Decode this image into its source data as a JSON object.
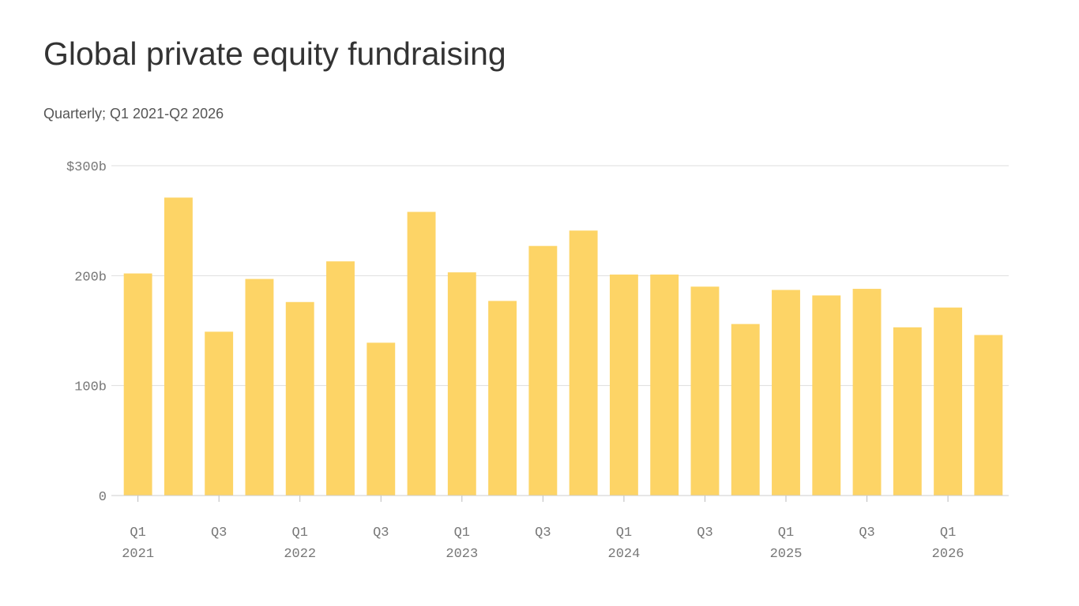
{
  "chart_data": {
    "type": "bar",
    "title": "Global private equity fundraising",
    "subtitle": "Quarterly; Q1 2021-Q2 2026",
    "categories": [
      "Q1",
      null,
      "Q3",
      null,
      "Q1",
      null,
      "Q3",
      null,
      "Q1",
      null,
      "Q3",
      null,
      "Q1",
      null,
      "Q3",
      null,
      "Q1",
      null,
      "Q3",
      null,
      "Q1",
      null
    ],
    "years": [
      "2021",
      null,
      null,
      null,
      "2022",
      null,
      null,
      null,
      "2023",
      null,
      null,
      null,
      "2024",
      null,
      null,
      null,
      "2025",
      null,
      null,
      null,
      "2026",
      null
    ],
    "values": [
      202,
      271,
      149,
      197,
      176,
      213,
      139,
      258,
      203,
      177,
      227,
      241,
      201,
      201,
      190,
      156,
      187,
      182,
      188,
      153,
      171,
      146
    ],
    "color": "#fdd466",
    "ylim": [
      0,
      300
    ],
    "yticks": [
      0,
      {
        "value": 100,
        "label": "100b"
      },
      {
        "value": 200,
        "label": "200b"
      },
      {
        "value": 300,
        "label": "$300b"
      }
    ],
    "grid": true
  }
}
